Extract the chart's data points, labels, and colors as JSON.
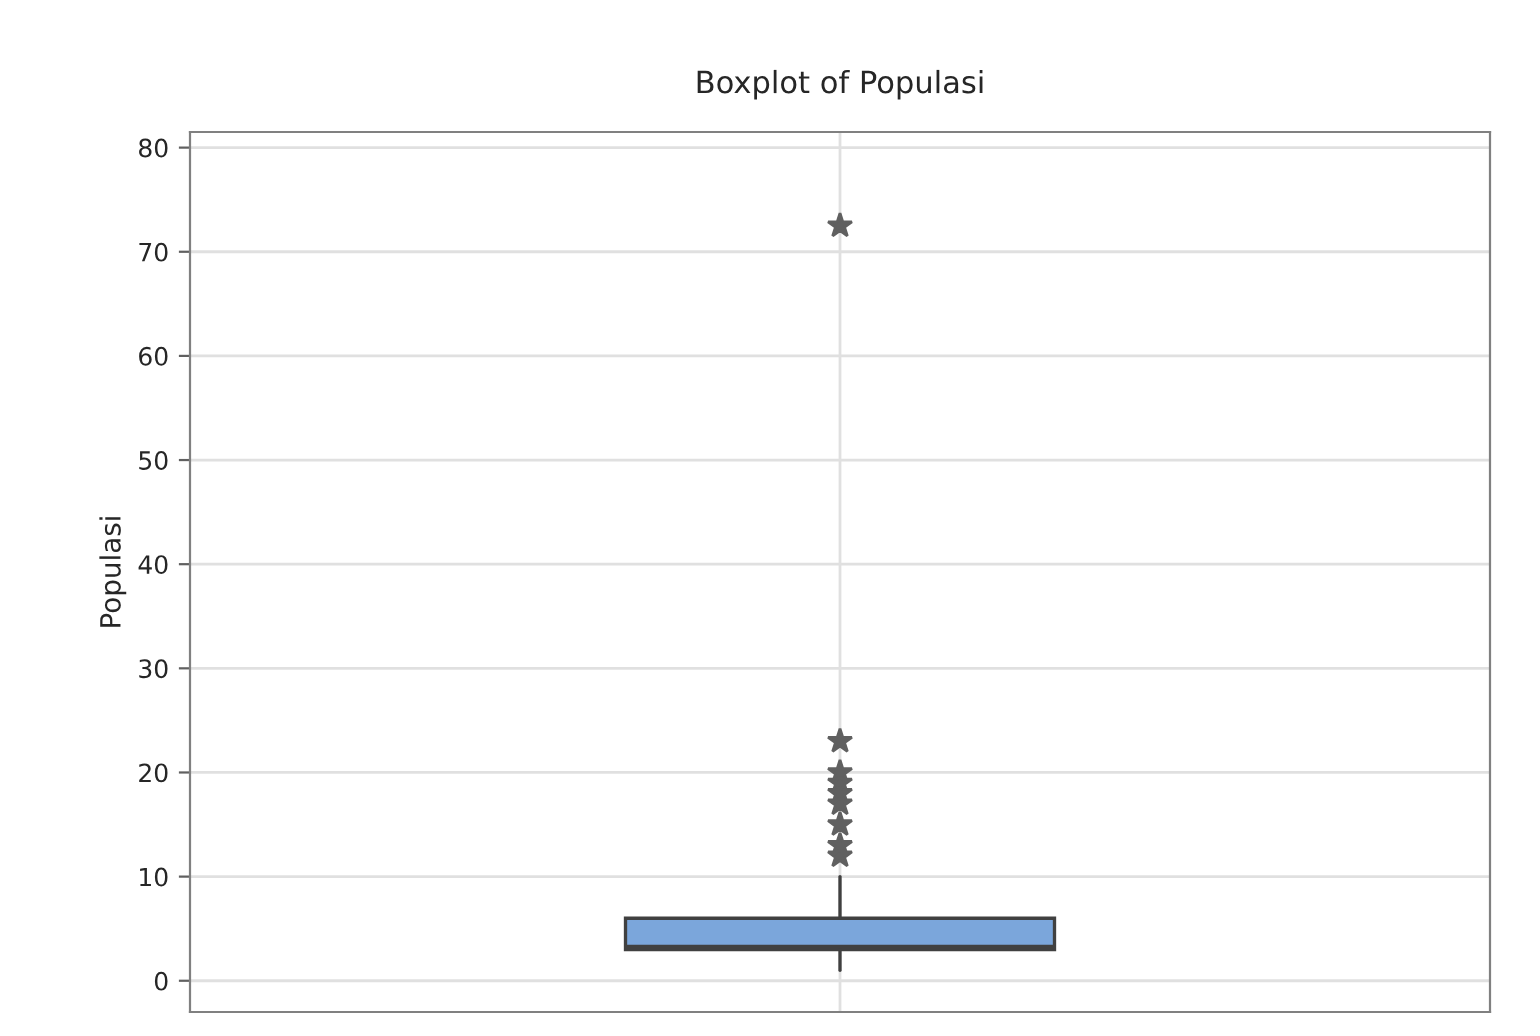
{
  "chart_data": {
    "type": "box",
    "title": "Boxplot of Populasi",
    "ylabel": "Populasi",
    "categories": [
      null
    ],
    "boxes": [
      {
        "low": 1,
        "q1": 3,
        "median": 3.3,
        "q3": 6,
        "high": 10,
        "outliers": [
          12,
          13,
          15,
          17,
          18,
          19,
          20,
          23,
          72.5
        ]
      }
    ],
    "color": "#7ba6db",
    "ylim": [
      -3,
      81.5
    ],
    "yticks": [
      0,
      10,
      20,
      30,
      40,
      50,
      60,
      70,
      80
    ],
    "grid": true,
    "marker": "star"
  }
}
